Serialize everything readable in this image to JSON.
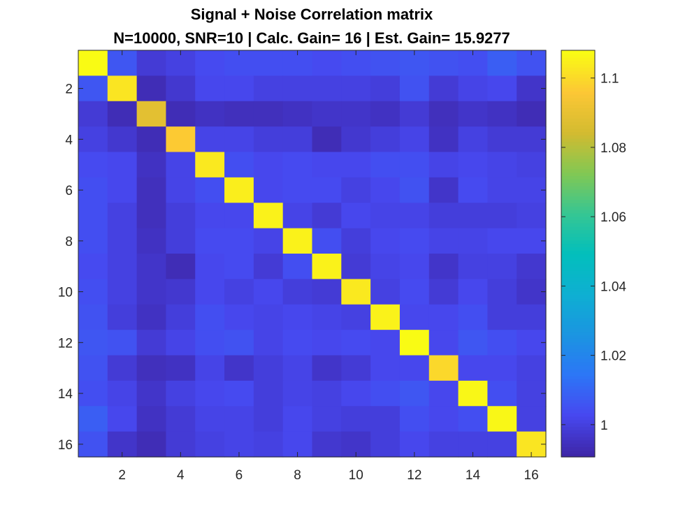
{
  "chart_data": {
    "type": "heatmap",
    "title": "Signal + Noise Correlation matrix",
    "subtitle": "N=10000, SNR=10 | Calc. Gain= 16 | Est. Gain= 15.9277",
    "xlabel": "",
    "ylabel": "",
    "x_ticks": [
      "2",
      "4",
      "6",
      "8",
      "10",
      "12",
      "14",
      "16"
    ],
    "y_ticks": [
      "2",
      "4",
      "6",
      "8",
      "10",
      "12",
      "14",
      "16"
    ],
    "colorbar": {
      "colormap": "parula",
      "clim": [
        0.9907,
        1.108
      ],
      "ticks": [
        "1",
        "1.02",
        "1.04",
        "1.06",
        "1.08",
        "1.1"
      ]
    },
    "rows": 16,
    "cols": 16,
    "matrix": [
      [
        1.108,
        1.006,
        0.998,
        1.0,
        1.003,
        1.004,
        1.004,
        1.004,
        1.003,
        1.004,
        1.005,
        1.006,
        1.005,
        1.004,
        1.008,
        1.005
      ],
      [
        1.006,
        1.103,
        0.993,
        0.997,
        1.002,
        1.002,
        1.0,
        1.0,
        1.0,
        1.0,
        0.999,
        1.005,
        0.998,
        1.001,
        1.002,
        0.996
      ],
      [
        0.998,
        0.993,
        1.089,
        0.993,
        0.995,
        0.994,
        0.994,
        0.995,
        0.996,
        0.996,
        0.995,
        0.998,
        0.994,
        0.996,
        0.995,
        0.993
      ],
      [
        1.0,
        0.997,
        0.993,
        1.097,
        1.001,
        1.001,
        0.999,
        0.999,
        0.993,
        0.997,
        0.999,
        1.001,
        0.995,
        1.0,
        0.998,
        0.998
      ],
      [
        1.003,
        1.002,
        0.995,
        1.001,
        1.104,
        1.004,
        1.002,
        1.003,
        1.002,
        1.002,
        1.004,
        1.004,
        1.001,
        1.002,
        1.001,
        1.0
      ],
      [
        1.004,
        1.002,
        0.994,
        1.001,
        1.004,
        1.105,
        1.002,
        1.003,
        1.003,
        1.0,
        1.002,
        1.005,
        0.996,
        1.003,
        1.001,
        1.001
      ],
      [
        1.004,
        1.0,
        0.994,
        0.999,
        1.002,
        1.002,
        1.106,
        1.001,
        0.998,
        1.002,
        1.001,
        1.001,
        0.999,
        0.999,
        0.999,
        1.0
      ],
      [
        1.004,
        1.0,
        0.995,
        0.999,
        1.003,
        1.003,
        1.001,
        1.106,
        1.004,
        0.999,
        1.002,
        1.003,
        1.001,
        1.001,
        1.002,
        1.002
      ],
      [
        1.003,
        1.0,
        0.996,
        0.993,
        1.002,
        1.003,
        0.998,
        1.004,
        1.106,
        0.998,
        1.001,
        1.002,
        0.996,
        1.0,
        1.0,
        0.997
      ],
      [
        1.004,
        1.0,
        0.996,
        0.997,
        1.002,
        1.0,
        1.002,
        0.999,
        0.998,
        1.104,
        1.0,
        1.003,
        0.998,
        1.002,
        0.999,
        0.996
      ],
      [
        1.005,
        0.999,
        0.995,
        0.999,
        1.004,
        1.002,
        1.001,
        1.002,
        1.001,
        1.0,
        1.106,
        1.002,
        1.002,
        1.004,
        0.999,
        0.999
      ],
      [
        1.006,
        1.005,
        0.998,
        1.001,
        1.004,
        1.005,
        1.001,
        1.003,
        1.002,
        1.003,
        1.002,
        1.108,
        1.002,
        1.006,
        1.004,
        1.002
      ],
      [
        1.005,
        0.998,
        0.994,
        0.995,
        1.001,
        0.996,
        0.999,
        1.001,
        0.996,
        0.998,
        1.002,
        1.002,
        1.1,
        1.002,
        1.002,
        1.0
      ],
      [
        1.004,
        1.001,
        0.996,
        1.0,
        1.002,
        1.003,
        0.999,
        1.001,
        1.0,
        1.002,
        1.004,
        1.006,
        1.002,
        1.107,
        1.004,
        1.0
      ],
      [
        1.008,
        1.002,
        0.995,
        0.998,
        1.001,
        1.001,
        0.999,
        1.002,
        1.0,
        0.999,
        0.999,
        1.004,
        1.002,
        1.004,
        1.107,
        1.0
      ],
      [
        1.005,
        0.996,
        0.993,
        0.998,
        1.0,
        1.001,
        1.0,
        1.002,
        0.997,
        0.996,
        0.999,
        1.002,
        1.0,
        1.0,
        1.0,
        1.103
      ]
    ]
  }
}
